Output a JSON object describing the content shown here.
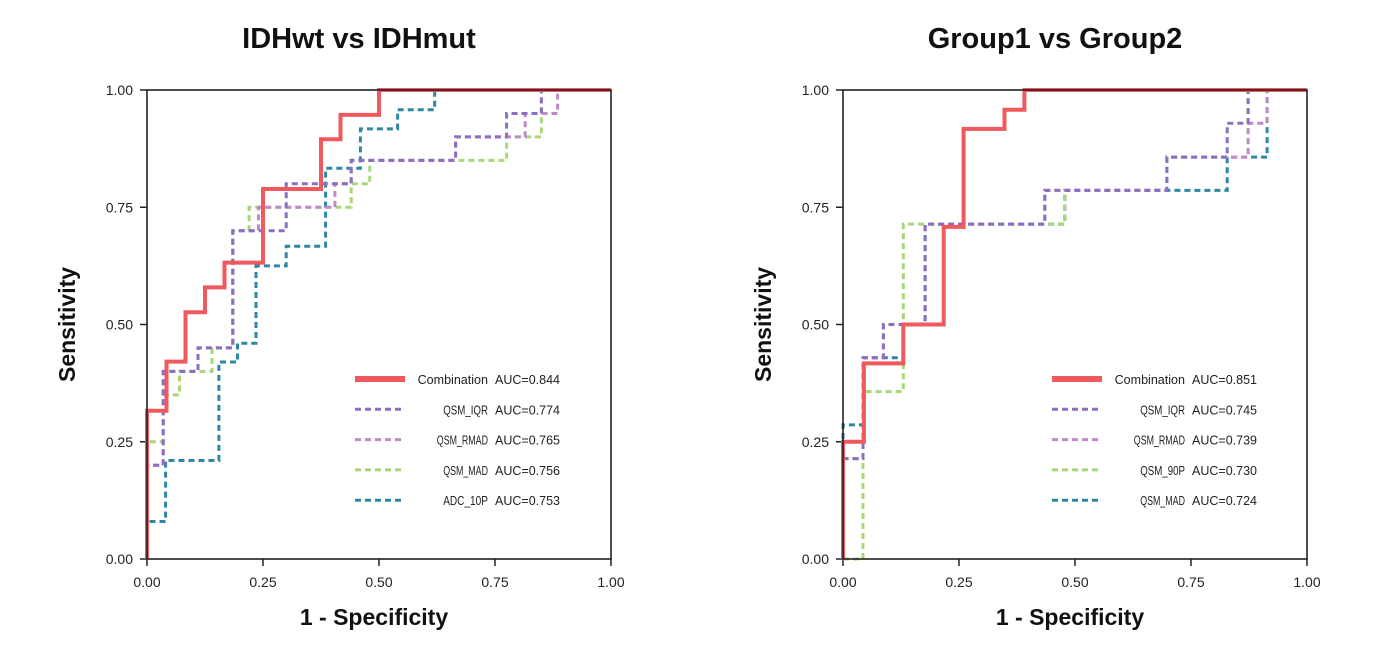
{
  "chart_data": [
    {
      "type": "line",
      "subtype": "roc-step",
      "title": "IDHwt vs IDHmut",
      "xlabel": "1 - Specificity",
      "ylabel": "Sensitivity",
      "xlim": [
        0,
        1
      ],
      "ylim": [
        0,
        1
      ],
      "xticks": [
        "0.00",
        "0.25",
        "0.50",
        "0.75",
        "1.00"
      ],
      "yticks": [
        "0.00",
        "0.25",
        "0.50",
        "0.75",
        "1.00"
      ],
      "grid": false,
      "legend_position": "bottom-right",
      "series": [
        {
          "name": "Combination",
          "auc": "AUC=0.844",
          "color": "#f05a5f",
          "style": "solid",
          "points": [
            [
              0,
              0
            ],
            [
              0,
              0.316
            ],
            [
              0.042,
              0.316
            ],
            [
              0.042,
              0.421
            ],
            [
              0.083,
              0.421
            ],
            [
              0.083,
              0.526
            ],
            [
              0.125,
              0.526
            ],
            [
              0.125,
              0.579
            ],
            [
              0.167,
              0.579
            ],
            [
              0.167,
              0.632
            ],
            [
              0.25,
              0.632
            ],
            [
              0.25,
              0.789
            ],
            [
              0.375,
              0.789
            ],
            [
              0.375,
              0.895
            ],
            [
              0.417,
              0.895
            ],
            [
              0.417,
              0.947
            ],
            [
              0.5,
              0.947
            ],
            [
              0.5,
              1
            ],
            [
              1,
              1
            ]
          ]
        },
        {
          "name": "QSM_IQR",
          "auc": "AUC=0.774",
          "color": "#8c6fc0",
          "style": "dashed",
          "points": [
            [
              0,
              0
            ],
            [
              0,
              0.2
            ],
            [
              0.035,
              0.2
            ],
            [
              0.035,
              0.4
            ],
            [
              0.11,
              0.4
            ],
            [
              0.11,
              0.45
            ],
            [
              0.185,
              0.45
            ],
            [
              0.185,
              0.7
            ],
            [
              0.3,
              0.7
            ],
            [
              0.3,
              0.8
            ],
            [
              0.44,
              0.8
            ],
            [
              0.44,
              0.85
            ],
            [
              0.665,
              0.85
            ],
            [
              0.665,
              0.9
            ],
            [
              0.775,
              0.9
            ],
            [
              0.775,
              0.95
            ],
            [
              0.85,
              0.95
            ],
            [
              0.85,
              1
            ],
            [
              1,
              1
            ]
          ]
        },
        {
          "name": "QSM_RMAD",
          "auc": "AUC=0.765",
          "color": "#c08ac8",
          "style": "dashed",
          "points": [
            [
              0,
              0
            ],
            [
              0,
              0.2
            ],
            [
              0.035,
              0.2
            ],
            [
              0.035,
              0.4
            ],
            [
              0.11,
              0.4
            ],
            [
              0.11,
              0.45
            ],
            [
              0.185,
              0.45
            ],
            [
              0.185,
              0.7
            ],
            [
              0.24,
              0.7
            ],
            [
              0.24,
              0.75
            ],
            [
              0.405,
              0.75
            ],
            [
              0.405,
              0.8
            ],
            [
              0.44,
              0.8
            ],
            [
              0.44,
              0.85
            ],
            [
              0.665,
              0.85
            ],
            [
              0.665,
              0.9
            ],
            [
              0.815,
              0.9
            ],
            [
              0.815,
              0.95
            ],
            [
              0.885,
              0.95
            ],
            [
              0.885,
              1
            ],
            [
              1,
              1
            ]
          ]
        },
        {
          "name": "QSM_MAD",
          "auc": "AUC=0.756",
          "color": "#a8d77a",
          "style": "dashed",
          "points": [
            [
              0,
              0
            ],
            [
              0,
              0.25
            ],
            [
              0.035,
              0.25
            ],
            [
              0.035,
              0.35
            ],
            [
              0.07,
              0.35
            ],
            [
              0.07,
              0.4
            ],
            [
              0.14,
              0.4
            ],
            [
              0.14,
              0.45
            ],
            [
              0.185,
              0.45
            ],
            [
              0.185,
              0.7
            ],
            [
              0.22,
              0.7
            ],
            [
              0.22,
              0.75
            ],
            [
              0.44,
              0.75
            ],
            [
              0.44,
              0.8
            ],
            [
              0.48,
              0.8
            ],
            [
              0.48,
              0.85
            ],
            [
              0.775,
              0.85
            ],
            [
              0.775,
              0.9
            ],
            [
              0.85,
              0.9
            ],
            [
              0.85,
              1
            ],
            [
              1,
              1
            ]
          ]
        },
        {
          "name": "ADC_10P",
          "auc": "AUC=0.753",
          "color": "#2e87a3",
          "style": "dashed",
          "points": [
            [
              0,
              0
            ],
            [
              0,
              0.08
            ],
            [
              0.04,
              0.08
            ],
            [
              0.04,
              0.21
            ],
            [
              0.155,
              0.21
            ],
            [
              0.155,
              0.42
            ],
            [
              0.195,
              0.42
            ],
            [
              0.195,
              0.46
            ],
            [
              0.235,
              0.46
            ],
            [
              0.235,
              0.625
            ],
            [
              0.3,
              0.625
            ],
            [
              0.3,
              0.667
            ],
            [
              0.385,
              0.667
            ],
            [
              0.385,
              0.833
            ],
            [
              0.46,
              0.833
            ],
            [
              0.46,
              0.917
            ],
            [
              0.54,
              0.917
            ],
            [
              0.54,
              0.958
            ],
            [
              0.62,
              0.958
            ],
            [
              0.62,
              1
            ],
            [
              1,
              1
            ]
          ]
        }
      ]
    },
    {
      "type": "line",
      "subtype": "roc-step",
      "title": "Group1 vs Group2",
      "xlabel": "1 - Specificity",
      "ylabel": "Sensitivity",
      "xlim": [
        0,
        1
      ],
      "ylim": [
        0,
        1
      ],
      "xticks": [
        "0.00",
        "0.25",
        "0.50",
        "0.75",
        "1.00"
      ],
      "yticks": [
        "0.00",
        "0.25",
        "0.50",
        "0.75",
        "1.00"
      ],
      "grid": false,
      "legend_position": "bottom-right",
      "series": [
        {
          "name": "Combination",
          "auc": "AUC=0.851",
          "color": "#f05a5f",
          "style": "solid",
          "points": [
            [
              0,
              0
            ],
            [
              0,
              0.25
            ],
            [
              0.045,
              0.25
            ],
            [
              0.045,
              0.417
            ],
            [
              0.13,
              0.417
            ],
            [
              0.13,
              0.5
            ],
            [
              0.217,
              0.5
            ],
            [
              0.217,
              0.708
            ],
            [
              0.26,
              0.708
            ],
            [
              0.26,
              0.917
            ],
            [
              0.348,
              0.917
            ],
            [
              0.348,
              0.958
            ],
            [
              0.391,
              0.958
            ],
            [
              0.391,
              1
            ],
            [
              1,
              1
            ]
          ]
        },
        {
          "name": "QSM_IQR",
          "auc": "AUC=0.745",
          "color": "#8c6fc0",
          "style": "dashed",
          "points": [
            [
              0,
              0
            ],
            [
              0,
              0.214
            ],
            [
              0.043,
              0.214
            ],
            [
              0.043,
              0.429
            ],
            [
              0.087,
              0.429
            ],
            [
              0.087,
              0.5
            ],
            [
              0.177,
              0.5
            ],
            [
              0.177,
              0.714
            ],
            [
              0.435,
              0.714
            ],
            [
              0.435,
              0.786
            ],
            [
              0.698,
              0.786
            ],
            [
              0.698,
              0.857
            ],
            [
              0.828,
              0.857
            ],
            [
              0.828,
              0.929
            ],
            [
              0.873,
              0.929
            ],
            [
              0.873,
              1
            ],
            [
              1,
              1
            ]
          ]
        },
        {
          "name": "QSM_RMAD",
          "auc": "AUC=0.739",
          "color": "#c08ac8",
          "style": "dashed",
          "points": [
            [
              0,
              0
            ],
            [
              0,
              0.214
            ],
            [
              0.043,
              0.214
            ],
            [
              0.043,
              0.429
            ],
            [
              0.087,
              0.429
            ],
            [
              0.087,
              0.5
            ],
            [
              0.177,
              0.5
            ],
            [
              0.177,
              0.714
            ],
            [
              0.435,
              0.714
            ],
            [
              0.435,
              0.786
            ],
            [
              0.698,
              0.786
            ],
            [
              0.698,
              0.857
            ],
            [
              0.873,
              0.857
            ],
            [
              0.873,
              0.929
            ],
            [
              0.914,
              0.929
            ],
            [
              0.914,
              1
            ],
            [
              1,
              1
            ]
          ]
        },
        {
          "name": "QSM_90P",
          "auc": "AUC=0.730",
          "color": "#a8d77a",
          "style": "dashed",
          "points": [
            [
              0,
              0
            ],
            [
              0.043,
              0
            ],
            [
              0.043,
              0.357
            ],
            [
              0.13,
              0.357
            ],
            [
              0.13,
              0.714
            ],
            [
              0.478,
              0.714
            ],
            [
              0.478,
              0.786
            ],
            [
              0.698,
              0.786
            ],
            [
              0.698,
              0.857
            ],
            [
              0.873,
              0.857
            ],
            [
              0.873,
              1
            ],
            [
              1,
              1
            ]
          ]
        },
        {
          "name": "QSM_MAD",
          "auc": "AUC=0.724",
          "color": "#2e87a3",
          "style": "dashed",
          "points": [
            [
              0,
              0
            ],
            [
              0,
              0.286
            ],
            [
              0.043,
              0.286
            ],
            [
              0.043,
              0.429
            ],
            [
              0.13,
              0.429
            ],
            [
              0.13,
              0.5
            ],
            [
              0.177,
              0.5
            ],
            [
              0.177,
              0.714
            ],
            [
              0.478,
              0.714
            ],
            [
              0.478,
              0.786
            ],
            [
              0.828,
              0.786
            ],
            [
              0.828,
              0.857
            ],
            [
              0.914,
              0.857
            ],
            [
              0.914,
              1
            ],
            [
              1,
              1
            ]
          ]
        }
      ]
    }
  ]
}
